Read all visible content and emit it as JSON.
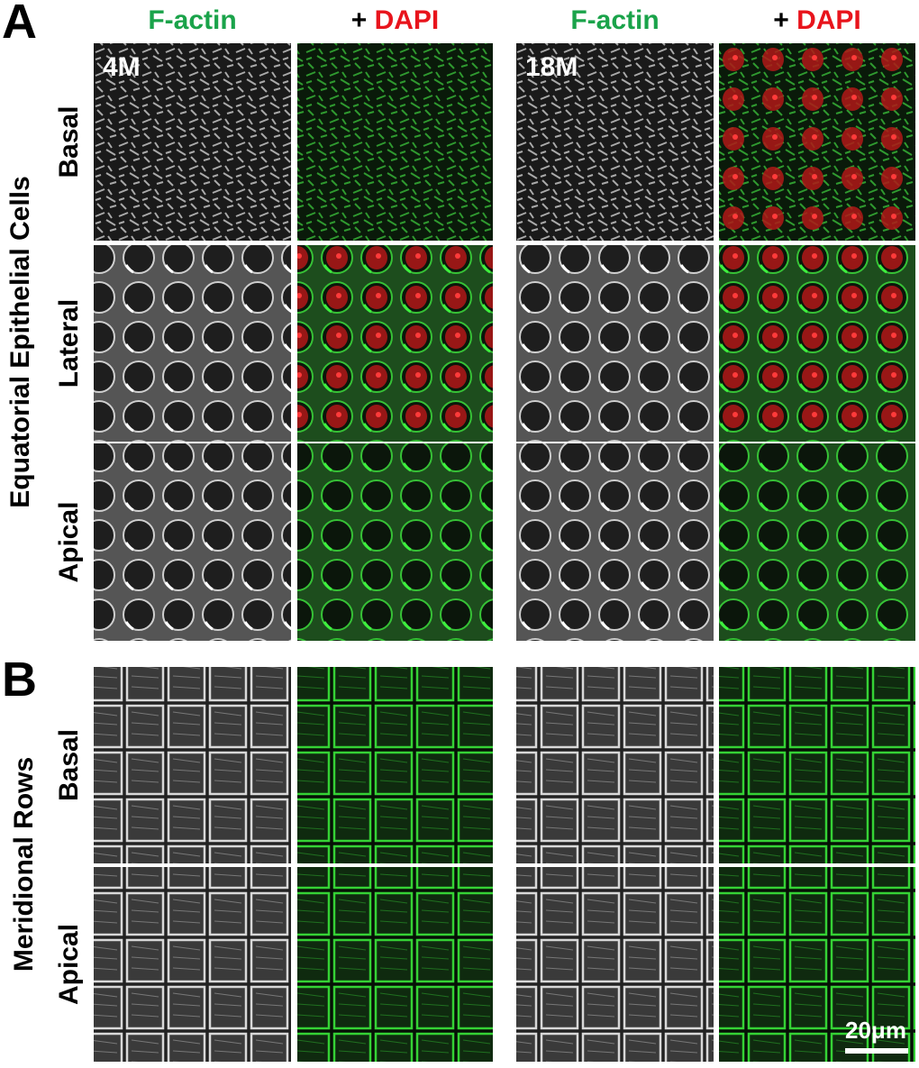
{
  "figure": {
    "panels": [
      {
        "letter": "A",
        "group_label": "Equatorial Epithelial Cells",
        "rows": [
          "Basal",
          "Lateral",
          "Apical"
        ]
      },
      {
        "letter": "B",
        "group_label": "Meridional Rows",
        "rows": [
          "Basal",
          "Apical"
        ]
      }
    ],
    "columns": [
      {
        "header": "F-actin"
      },
      {
        "prefix": "+",
        "header": "DAPI"
      },
      {
        "header": "F-actin"
      },
      {
        "prefix": "+",
        "header": "DAPI"
      }
    ],
    "ages": [
      "4M",
      "18M"
    ],
    "scale_bar": "20μm"
  }
}
